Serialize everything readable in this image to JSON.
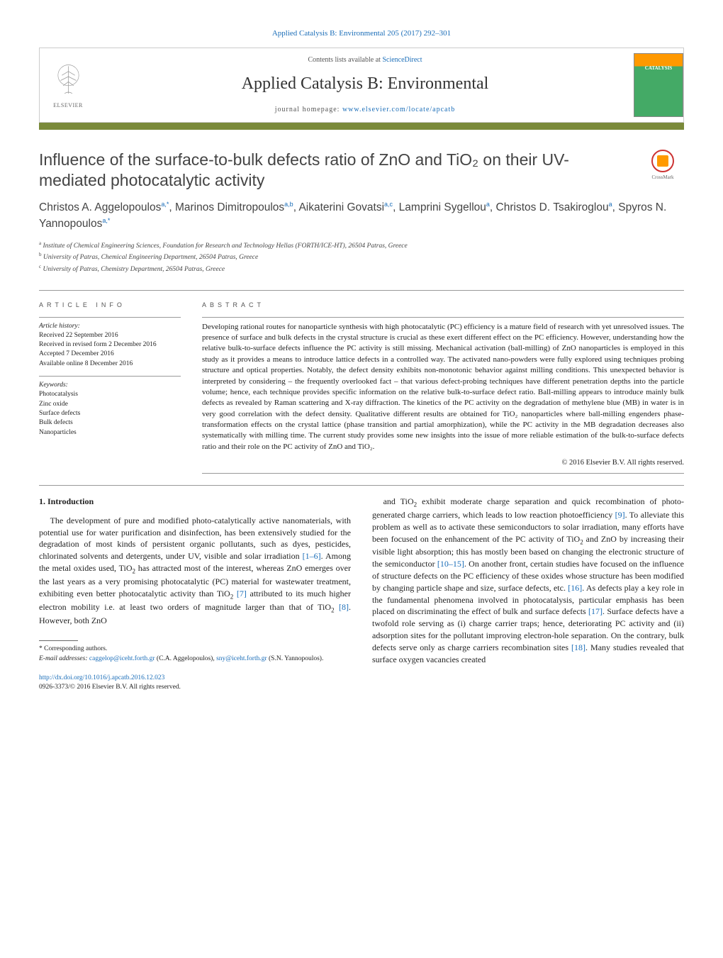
{
  "header": {
    "top_link_prefix": "Applied Catalysis B: Environmental 205 (2017) 292–301",
    "contents_text": "Contents lists available at ",
    "contents_link": "ScienceDirect",
    "journal_name": "Applied Catalysis B: Environmental",
    "homepage_text": "journal homepage: ",
    "homepage_link": "www.elsevier.com/locate/apcatb",
    "elsevier": "ELSEVIER",
    "cover_title": "CATALYSIS"
  },
  "crossmark": {
    "label": "CrossMark"
  },
  "title": "Influence of the surface-to-bulk defects ratio of ZnO and TiO₂ on their UV-mediated photocatalytic activity",
  "authors_html": "Christos A. Aggelopoulos<sup>a,*</sup>, Marinos Dimitropoulos<sup>a,b</sup>, Aikaterini Govatsi<sup>a,c</sup>, Lamprini Sygellou<sup>a</sup>, Christos D. Tsakiroglou<sup>a</sup>, Spyros N. Yannopoulos<sup>a,*</sup>",
  "affiliations": [
    {
      "sup": "a",
      "text": "Institute of Chemical Engineering Sciences, Foundation for Research and Technology Hellas (FORTH/ICE-HT), 26504 Patras, Greece"
    },
    {
      "sup": "b",
      "text": "University of Patras, Chemical Engineering Department, 26504 Patras, Greece"
    },
    {
      "sup": "c",
      "text": "University of Patras, Chemistry Department, 26504 Patras, Greece"
    }
  ],
  "article_info": {
    "heading": "ARTICLE INFO",
    "history_label": "Article history:",
    "history": [
      "Received 22 September 2016",
      "Received in revised form 2 December 2016",
      "Accepted 7 December 2016",
      "Available online 8 December 2016"
    ],
    "keywords_label": "Keywords:",
    "keywords": [
      "Photocatalysis",
      "Zinc oxide",
      "Surface defects",
      "Bulk defects",
      "Nanoparticles"
    ]
  },
  "abstract": {
    "heading": "ABSTRACT",
    "text": "Developing rational routes for nanoparticle synthesis with high photocatalytic (PC) efficiency is a mature field of research with yet unresolved issues. The presence of surface and bulk defects in the crystal structure is crucial as these exert different effect on the PC efficiency. However, understanding how the relative bulk-to-surface defects influence the PC activity is still missing. Mechanical activation (ball-milling) of ZnO nanoparticles is employed in this study as it provides a means to introduce lattice defects in a controlled way. The activated nano-powders were fully explored using techniques probing structure and optical properties. Notably, the defect density exhibits non-monotonic behavior against milling conditions. This unexpected behavior is interpreted by considering – the frequently overlooked fact – that various defect-probing techniques have different penetration depths into the particle volume; hence, each technique provides specific information on the relative bulk-to-surface defect ratio. Ball-milling appears to introduce mainly bulk defects as revealed by Raman scattering and X-ray diffraction. The kinetics of the PC activity on the degradation of methylene blue (MB) in water is in very good correlation with the defect density. Qualitative different results are obtained for TiO₂ nanoparticles where ball-milling engenders phase-transformation effects on the crystal lattice (phase transition and partial amorphization), while the PC activity in the MB degradation decreases also systematically with milling time. The current study provides some new insights into the issue of more reliable estimation of the bulk-to-surface defects ratio and their role on the PC activity of ZnO and TiO₂.",
    "copyright": "© 2016 Elsevier B.V. All rights reserved."
  },
  "body": {
    "section_num": "1.",
    "section_title": "Introduction",
    "col1_p1": "The development of pure and modified photo-catalytically active nanomaterials, with potential use for water purification and disinfection, has been extensively studied for the degradation of most kinds of persistent organic pollutants, such as dyes, pesticides, chlorinated solvents and detergents, under UV, visible and solar irradiation [1–6]. Among the metal oxides used, TiO₂ has attracted most of the interest, whereas ZnO emerges over the last years as a very promising photocatalytic (PC) material for wastewater treatment, exhibiting even better photocatalytic activity than TiO₂ [7] attributed to its much higher electron mobility i.e. at least two orders of magnitude larger than that of TiO₂ [8]. However, both ZnO",
    "col2_p1": "and TiO₂ exhibit moderate charge separation and quick recombination of photo-generated charge carriers, which leads to low reaction photoefficiency [9]. To alleviate this problem as well as to activate these semiconductors to solar irradiation, many efforts have been focused on the enhancement of the PC activity of TiO₂ and ZnO by increasing their visible light absorption; this has mostly been based on changing the electronic structure of the semiconductor [10–15]. On another front, certain studies have focused on the influence of structure defects on the PC efficiency of these oxides whose structure has been modified by changing particle shape and size, surface defects, etc. [16]. As defects play a key role in the fundamental phenomena involved in photocatalysis, particular emphasis has been placed on discriminating the effect of bulk and surface defects [17]. Surface defects have a twofold role serving as (i) charge carrier traps; hence, deteriorating PC activity and (ii) adsorption sites for the pollutant improving electron-hole separation. On the contrary, bulk defects serve only as charge carriers recombination sites [18]. Many studies revealed that surface oxygen vacancies created",
    "refs": {
      "r1": "[1–6]",
      "r7": "[7]",
      "r8": "[8]",
      "r9": "[9]",
      "r10": "[10–15]",
      "r16": "[16]",
      "r17": "[17]",
      "r18": "[18]"
    }
  },
  "footnote": {
    "corr": "* Corresponding authors.",
    "email_label": "E-mail addresses: ",
    "email1": "caggelop@iceht.forth.gr",
    "email1_who": " (C.A. Aggelopoulos), ",
    "email2": "sny@iceht.forth.gr",
    "email2_who": " (S.N. Yannopoulos)."
  },
  "doi": {
    "link": "http://dx.doi.org/10.1016/j.apcatb.2016.12.023",
    "issn": "0926-3373/© 2016 Elsevier B.V. All rights reserved."
  },
  "colors": {
    "link": "#1a6db8",
    "bar": "#7a8a3a",
    "text": "#222",
    "heading": "#444"
  }
}
